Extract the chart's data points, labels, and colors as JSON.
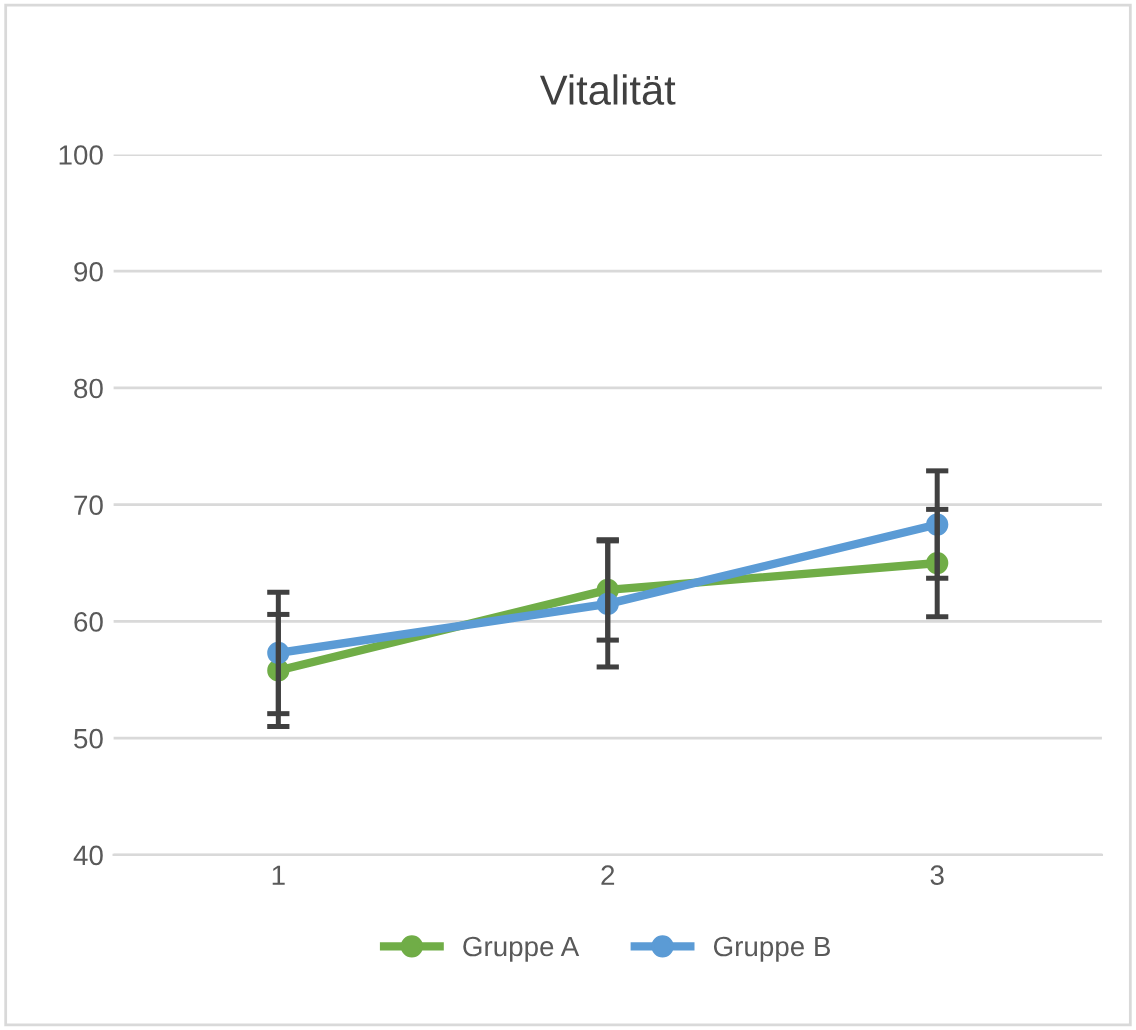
{
  "chart_data": {
    "type": "line",
    "title": "Vitalität",
    "categories": [
      "1",
      "2",
      "3"
    ],
    "series": [
      {
        "name": "Gruppe A",
        "color": "#70ad47",
        "values": [
          55.8,
          62.7,
          65.0
        ],
        "errors": [
          4.8,
          4.3,
          4.6
        ]
      },
      {
        "name": "Gruppe B",
        "color": "#5b9bd5",
        "values": [
          57.3,
          61.5,
          68.3
        ],
        "errors": [
          5.2,
          5.4,
          4.6
        ]
      }
    ],
    "ylim": [
      40,
      100
    ],
    "yticks": [
      40,
      50,
      60,
      70,
      80,
      90,
      100
    ],
    "grid": "y",
    "legend": "bottom",
    "marker": "circle",
    "line_style": "solid"
  }
}
